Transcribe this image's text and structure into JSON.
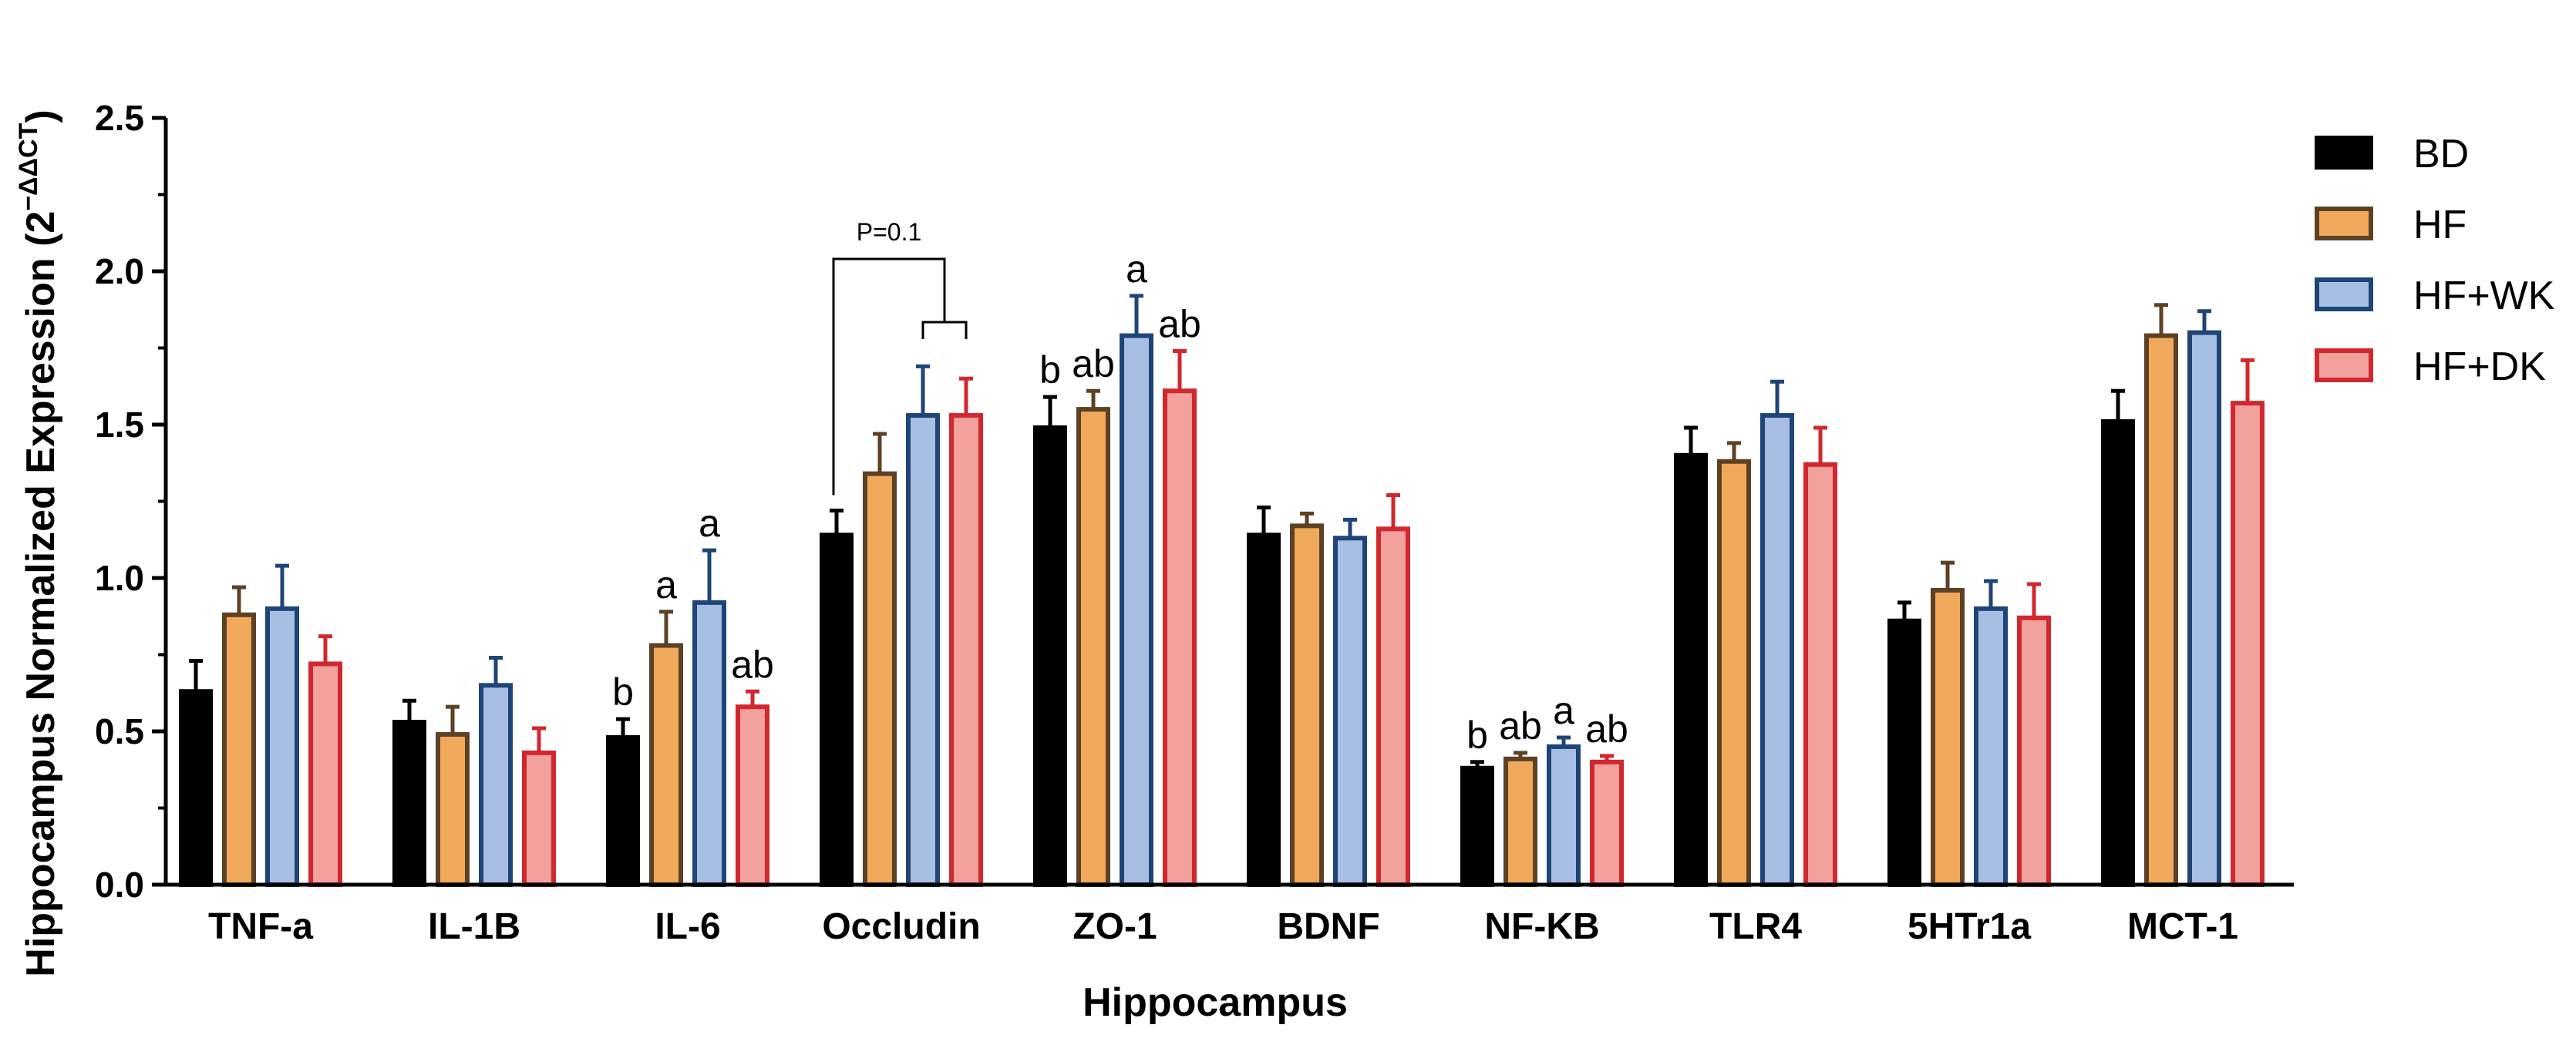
{
  "chart_data": {
    "type": "bar",
    "title": "",
    "xlabel": "Hippocampus",
    "ylabel": "Hippocampus Normalized Expression",
    "ylabel_unit": "(2",
    "ylabel_sup": "−ΔΔCT",
    "ylabel_close": ")",
    "ylim": [
      0,
      2.5
    ],
    "yticks": [
      "0.0",
      "0.5",
      "1.0",
      "1.5",
      "2.0",
      "2.5"
    ],
    "ytick_values": [
      0,
      0.5,
      1.0,
      1.5,
      2.0,
      2.5
    ],
    "categories": [
      "TNF-a",
      "IL-1B",
      "IL-6",
      "Occludin",
      "ZO-1",
      "BDNF",
      "NF-KB",
      "TLR4",
      "5HTr1a",
      "MCT-1"
    ],
    "legend_position": "right",
    "series": [
      {
        "name": "BD",
        "color": "#000000",
        "stroke": "#000000",
        "values": [
          0.63,
          0.53,
          0.48,
          1.14,
          1.49,
          1.14,
          0.38,
          1.4,
          0.86,
          1.51
        ],
        "errors": [
          0.1,
          0.07,
          0.06,
          0.08,
          0.1,
          0.09,
          0.02,
          0.09,
          0.06,
          0.1
        ],
        "labels": [
          "",
          "",
          "b",
          "",
          "b",
          "",
          "b",
          "",
          "",
          ""
        ]
      },
      {
        "name": "HF",
        "color": "#f0a95a",
        "stroke": "#5c4125",
        "values": [
          0.88,
          0.49,
          0.78,
          1.34,
          1.55,
          1.17,
          0.41,
          1.38,
          0.96,
          1.79
        ],
        "errors": [
          0.09,
          0.09,
          0.11,
          0.13,
          0.06,
          0.04,
          0.02,
          0.06,
          0.09,
          0.1
        ],
        "labels": [
          "",
          "",
          "a",
          "",
          "ab",
          "",
          "ab",
          "",
          "",
          ""
        ]
      },
      {
        "name": "HF+WK",
        "color": "#a6bfe3",
        "stroke": "#1f4478",
        "values": [
          0.9,
          0.65,
          0.92,
          1.53,
          1.79,
          1.13,
          0.45,
          1.53,
          0.9,
          1.8
        ],
        "errors": [
          0.14,
          0.09,
          0.17,
          0.16,
          0.13,
          0.06,
          0.03,
          0.11,
          0.09,
          0.07
        ],
        "labels": [
          "",
          "",
          "a",
          "",
          "a",
          "",
          "a",
          "",
          "",
          ""
        ]
      },
      {
        "name": "HF+DK",
        "color": "#f2a19c",
        "stroke": "#d0282e",
        "values": [
          0.72,
          0.43,
          0.58,
          1.53,
          1.61,
          1.16,
          0.4,
          1.37,
          0.87,
          1.57
        ],
        "errors": [
          0.09,
          0.08,
          0.05,
          0.12,
          0.13,
          0.11,
          0.02,
          0.12,
          0.11,
          0.14
        ],
        "labels": [
          "",
          "",
          "ab",
          "",
          "ab",
          "",
          "ab",
          "",
          "",
          ""
        ]
      }
    ],
    "annotation": {
      "text": "P=0.1",
      "category": "Occludin",
      "from_series": 0,
      "to_series": [
        2,
        3
      ]
    }
  }
}
